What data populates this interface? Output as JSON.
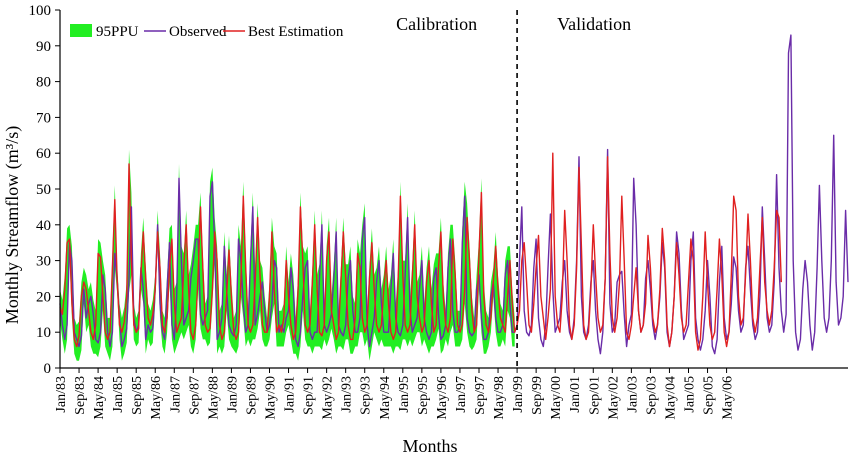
{
  "chart_data": {
    "type": "line",
    "xlabel": "Months",
    "ylabel": "Monthly Streamflow (m³/s)",
    "ylim": [
      0,
      100
    ],
    "yticks": [
      0,
      10,
      20,
      30,
      40,
      50,
      60,
      70,
      80,
      90,
      100
    ],
    "x_tick_labels": [
      "Jan/83",
      "Sep/83",
      "May/84",
      "Jan/85",
      "Sep/85",
      "May/86",
      "Jan/87",
      "Sep/87",
      "May/88",
      "Jan/89",
      "Sep/89",
      "May/90",
      "Jan/91",
      "Sep/91",
      "May/92",
      "Jan/93",
      "Sep/93",
      "May/94",
      "Jan/95",
      "Sep/95",
      "May/96",
      "Jan/97",
      "Sep/97",
      "May/98",
      "Jan/99",
      "Sep/99",
      "May/00",
      "Jan/01",
      "Sep/01",
      "May/02",
      "Jan/03",
      "Sep/03",
      "May/04",
      "Jan/05",
      "Sep/05",
      "May/06"
    ],
    "legend": {
      "position": "top-left",
      "entries": [
        {
          "label": "95PPU",
          "color": "#22ee22"
        },
        {
          "label": "Observed",
          "color": "#6a2ca8"
        },
        {
          "label": "Best Estimation",
          "color": "#e02020"
        }
      ]
    },
    "annotations": [
      {
        "text": "Calibration"
      },
      {
        "text": "Validation"
      }
    ],
    "split_at": "Jan/99",
    "observed": [
      18,
      12,
      8,
      12,
      35,
      30,
      10,
      8,
      6,
      9,
      22,
      14,
      18,
      20,
      15,
      8,
      7,
      10,
      26,
      22,
      10,
      6,
      10,
      32,
      25,
      14,
      6,
      8,
      11,
      25,
      45,
      14,
      10,
      12,
      28,
      22,
      8,
      12,
      10,
      11,
      22,
      40,
      18,
      10,
      8,
      22,
      35,
      12,
      8,
      20,
      53,
      30,
      12,
      14,
      16,
      25,
      30,
      36,
      36,
      15,
      12,
      14,
      16,
      48,
      52,
      34,
      8,
      10,
      14,
      34,
      22,
      12,
      10,
      9,
      12,
      36,
      30,
      18,
      10,
      12,
      30,
      45,
      12,
      15,
      20,
      24,
      16,
      10,
      12,
      18,
      30,
      28,
      10,
      12,
      10,
      14,
      16,
      28,
      22,
      8,
      6,
      10,
      20,
      28,
      30,
      10,
      8,
      10,
      10,
      25,
      40,
      12,
      10,
      12,
      15,
      25,
      38,
      12,
      10,
      9,
      12,
      25,
      30,
      16,
      10,
      10,
      14,
      36,
      42,
      12,
      6,
      10,
      14,
      24,
      30,
      18,
      10,
      10,
      10,
      22,
      32,
      14,
      10,
      9,
      12,
      26,
      42,
      16,
      10,
      12,
      14,
      22,
      30,
      14,
      10,
      8,
      10,
      25,
      28,
      15,
      8,
      9,
      12,
      28,
      36,
      16,
      10,
      10,
      12,
      35,
      48,
      14,
      10,
      9,
      10,
      22,
      26,
      14,
      8,
      8,
      10,
      20,
      24,
      14,
      10,
      10,
      12,
      26,
      30,
      18,
      10,
      10,
      12,
      30,
      45,
      16,
      10,
      9,
      12,
      28,
      36,
      14,
      8,
      6,
      12,
      28,
      43,
      22,
      10,
      12,
      14,
      24,
      30,
      16,
      10,
      8,
      14,
      30,
      59,
      20,
      10,
      8,
      12,
      24,
      30,
      16,
      8,
      4,
      10,
      25,
      61,
      18,
      10,
      12,
      24,
      26,
      27,
      15,
      6,
      12,
      15,
      53,
      40,
      16,
      10,
      12,
      25,
      30,
      22,
      12,
      8,
      12,
      20,
      35,
      28,
      10,
      6,
      10,
      20,
      38,
      32,
      16,
      8,
      10,
      12,
      30,
      38,
      14,
      8,
      5,
      8,
      16,
      30,
      20,
      6,
      4,
      8,
      24,
      34,
      14,
      8,
      10,
      18,
      31,
      28,
      16,
      10,
      12,
      28,
      34,
      22,
      12,
      8,
      10,
      20,
      45,
      30,
      14,
      10,
      12,
      24,
      54,
      28,
      16,
      10,
      15,
      88,
      93,
      30,
      10,
      5,
      8,
      22,
      30,
      24,
      12,
      5,
      10,
      28,
      51,
      30,
      14,
      10,
      14,
      30,
      65,
      24,
      12,
      14,
      20,
      44,
      24
    ],
    "best_estimation": [
      17,
      15,
      22,
      35,
      36,
      18,
      8,
      6,
      9,
      20,
      24,
      22,
      16,
      10,
      8,
      12,
      32,
      31,
      20,
      10,
      8,
      10,
      28,
      47,
      25,
      12,
      10,
      13,
      20,
      57,
      30,
      12,
      10,
      11,
      26,
      38,
      25,
      14,
      12,
      15,
      22,
      38,
      28,
      12,
      10,
      14,
      28,
      36,
      18,
      10,
      12,
      14,
      28,
      40,
      22,
      10,
      8,
      12,
      26,
      45,
      28,
      12,
      10,
      11,
      22,
      38,
      30,
      12,
      8,
      10,
      20,
      33,
      20,
      10,
      8,
      10,
      24,
      48,
      28,
      12,
      10,
      12,
      24,
      42,
      26,
      12,
      10,
      10,
      20,
      38,
      22,
      10,
      12,
      10,
      14,
      30,
      20,
      12,
      8,
      10,
      22,
      45,
      30,
      12,
      10,
      12,
      24,
      40,
      22,
      10,
      9,
      12,
      30,
      38,
      16,
      12,
      8,
      10,
      24,
      38,
      25,
      12,
      8,
      8,
      14,
      32,
      28,
      14,
      10,
      12,
      25,
      35,
      22,
      12,
      10,
      12,
      22,
      30,
      18,
      10,
      8,
      10,
      24,
      48,
      26,
      12,
      10,
      12,
      25,
      40,
      20,
      14,
      10,
      12,
      24,
      30,
      18,
      10,
      12,
      28,
      38,
      20,
      12,
      10,
      14,
      36,
      26,
      12,
      10,
      12,
      22,
      42,
      30,
      16,
      10,
      12,
      32,
      49,
      20,
      12,
      10,
      14,
      24,
      34,
      22,
      14,
      12,
      10,
      20,
      30,
      18,
      10,
      12,
      16,
      30,
      35,
      24,
      12,
      10,
      18,
      28,
      37,
      20,
      14,
      8,
      14,
      22,
      60,
      20,
      12,
      10,
      20,
      44,
      30,
      12,
      8,
      12,
      28,
      56,
      34,
      12,
      8,
      10,
      22,
      40,
      26,
      14,
      10,
      12,
      25,
      59,
      32,
      14,
      10,
      14,
      24,
      48,
      30,
      10,
      8,
      12,
      20,
      28,
      16,
      10,
      12,
      18,
      37,
      28,
      14,
      10,
      12,
      22,
      39,
      30,
      12,
      6,
      10,
      20,
      35,
      26,
      14,
      10,
      12,
      24,
      36,
      30,
      10,
      5,
      8,
      20,
      38,
      24,
      12,
      8,
      10,
      22,
      36,
      26,
      10,
      6,
      10,
      26,
      48,
      44,
      20,
      12,
      14,
      26,
      43,
      30,
      14,
      10,
      14,
      28,
      42,
      24,
      16,
      12,
      16,
      28,
      44,
      42,
      24
    ]
  }
}
